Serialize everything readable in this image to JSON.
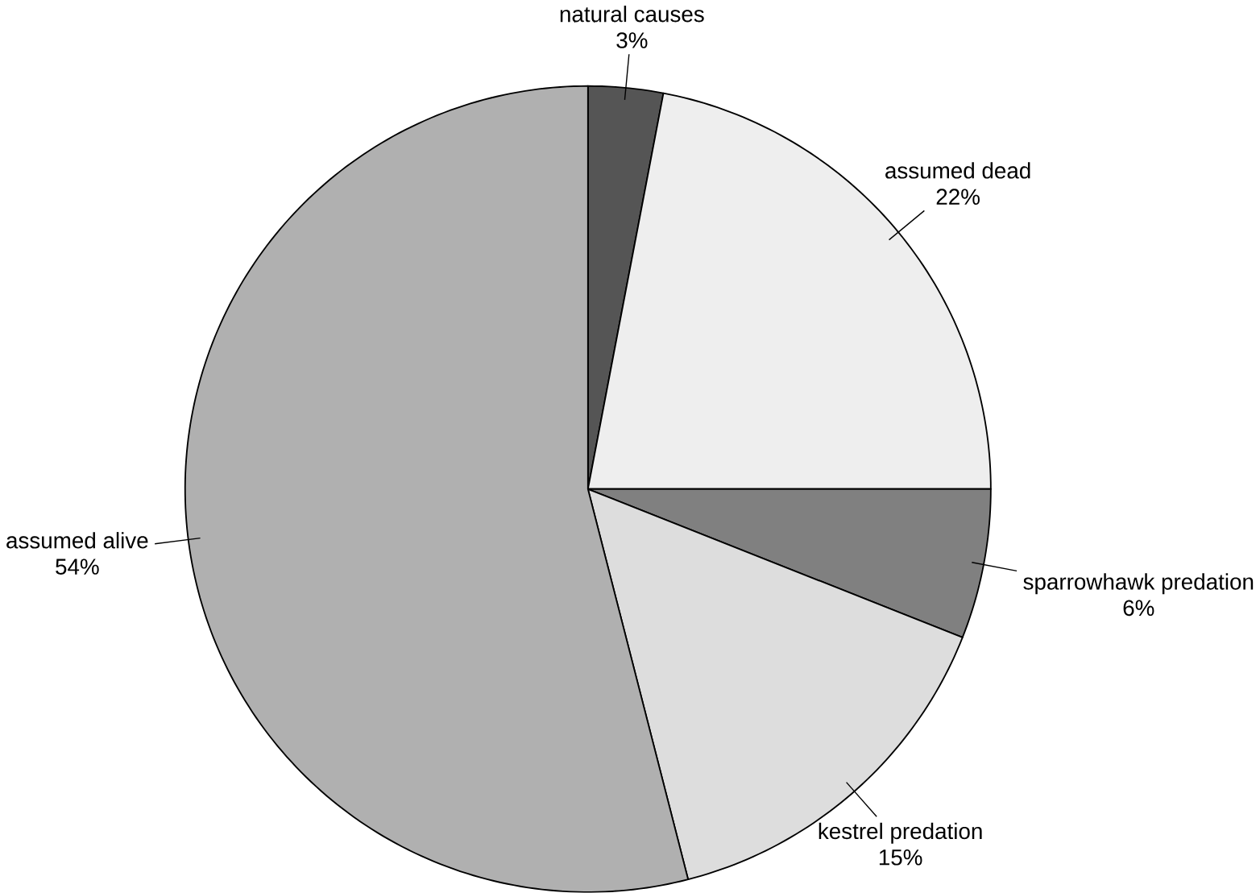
{
  "chart_data": {
    "type": "pie",
    "categories": [
      "natural causes",
      "assumed dead",
      "sparrowhawk predation",
      "kestrel predation",
      "assumed alive"
    ],
    "values": [
      3,
      22,
      6,
      15,
      54
    ],
    "value_labels": [
      "3%",
      "22%",
      "6%",
      "15%",
      "54%"
    ],
    "colors": [
      "#555555",
      "#eeeeee",
      "#808080",
      "#dddddd",
      "#b0b0b0"
    ]
  }
}
